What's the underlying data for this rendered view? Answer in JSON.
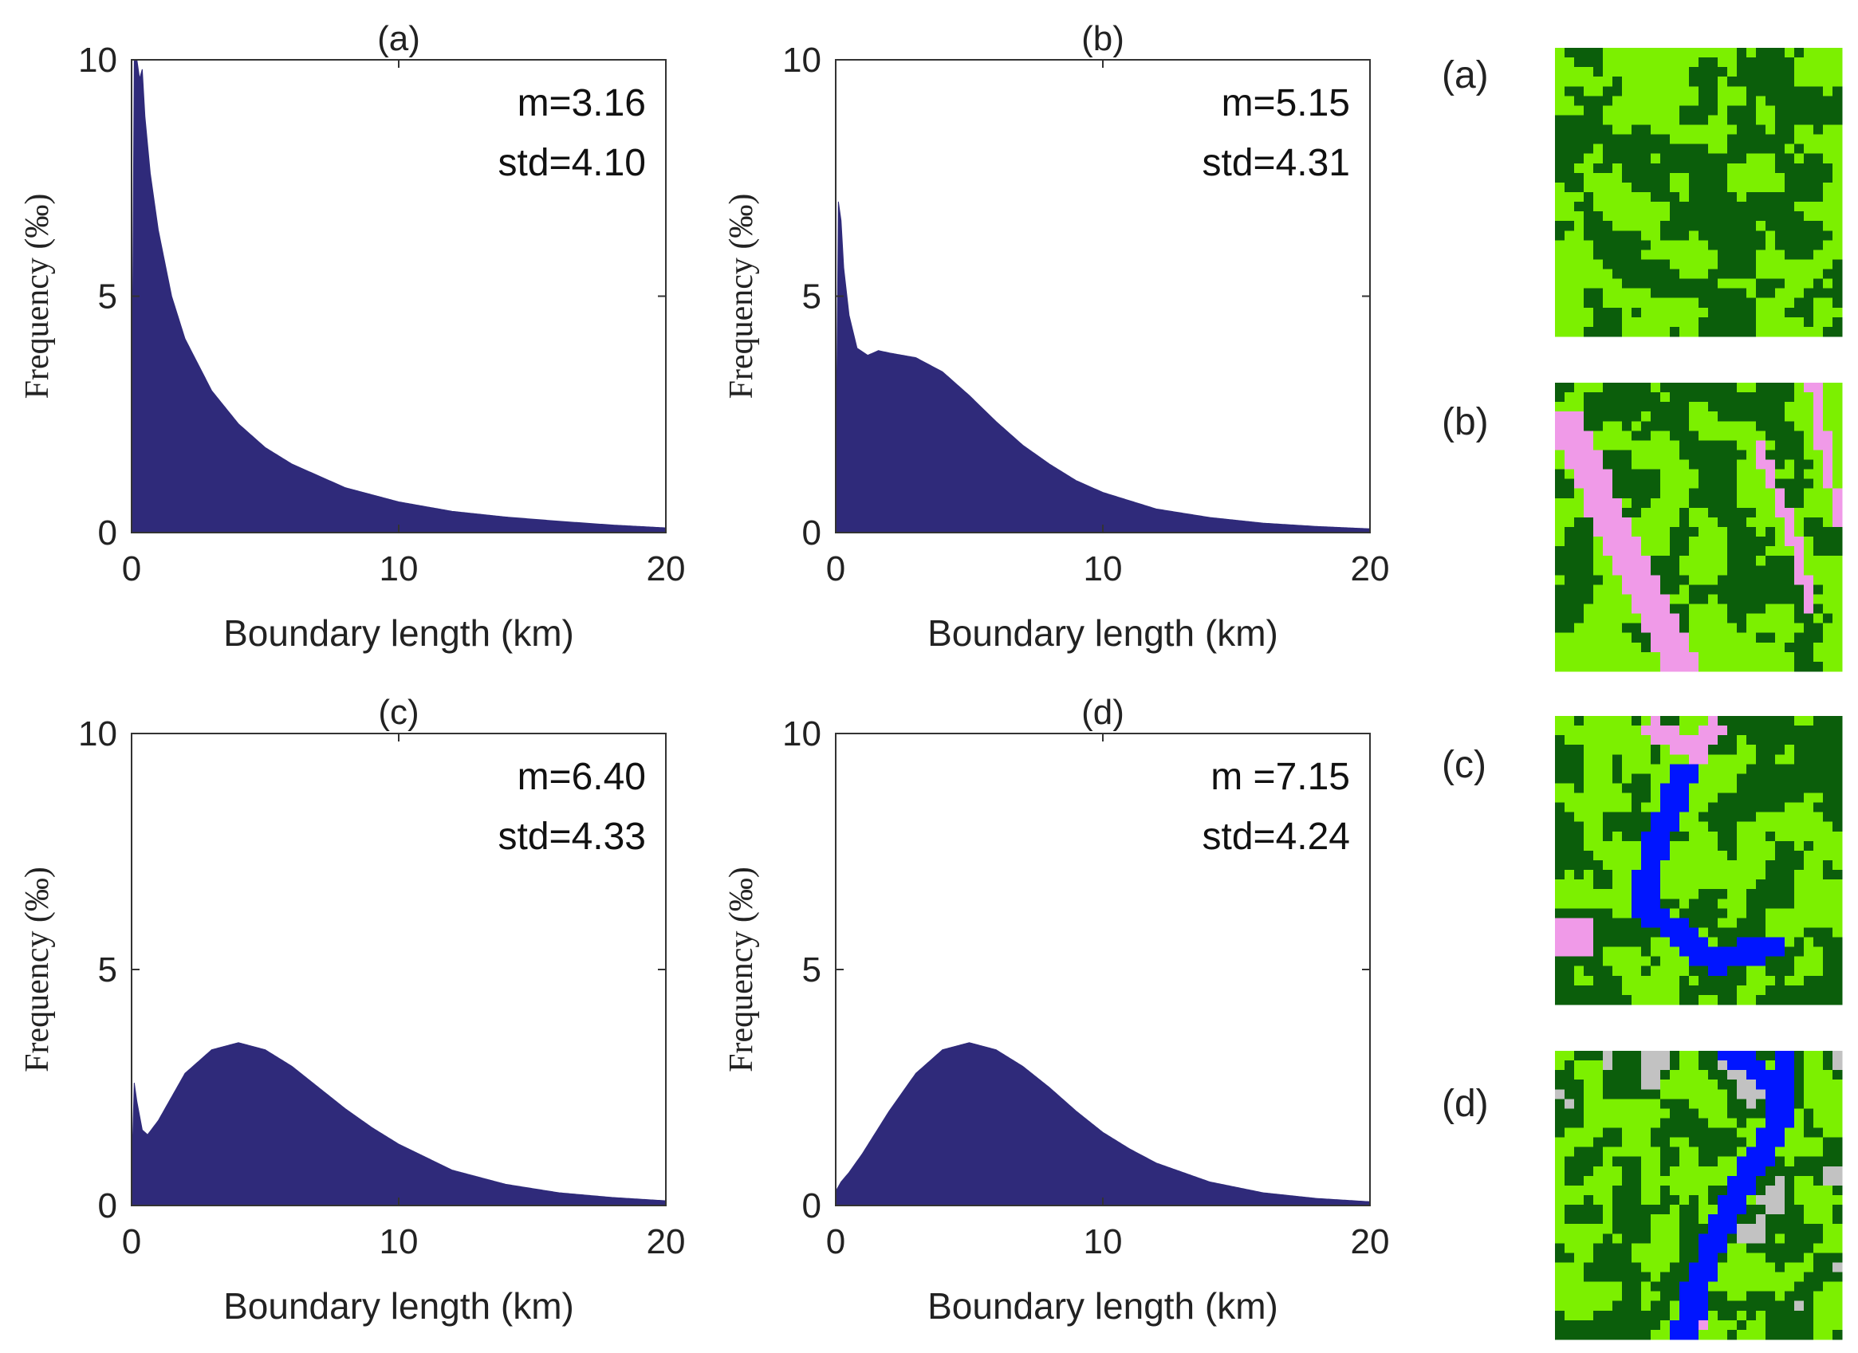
{
  "figure": {
    "colors": {
      "histogram": "#2f2a7a",
      "axes": "#333333",
      "map_dark_green": "#0b5e0b",
      "map_light_green": "#7cf000",
      "map_pink": "#f09ae8",
      "map_blue": "#0015ff",
      "map_gray": "#c2c2c2"
    }
  },
  "chart_data": [
    {
      "type": "area",
      "panel": "(a)",
      "title": "(a)",
      "xlabel": "Boundary length (km)",
      "ylabel": "Frequency (‰)",
      "xlim": [
        0,
        20
      ],
      "ylim": [
        0,
        10
      ],
      "xticks": [
        "0",
        "10",
        "20"
      ],
      "yticks": [
        "0",
        "5",
        "10"
      ],
      "stats": {
        "mean": "m=3.16",
        "std": "std=4.10"
      },
      "series": [
        {
          "name": "frequency",
          "x": [
            0,
            0.1,
            0.2,
            0.3,
            0.4,
            0.5,
            0.7,
            1.0,
            1.5,
            2,
            3,
            4,
            5,
            6,
            8,
            10,
            12,
            14,
            16,
            18,
            20
          ],
          "y": [
            1.2,
            10,
            10,
            9.6,
            9.8,
            8.8,
            7.6,
            6.4,
            5.0,
            4.1,
            3.0,
            2.3,
            1.8,
            1.45,
            0.95,
            0.65,
            0.45,
            0.33,
            0.24,
            0.16,
            0.1
          ]
        }
      ]
    },
    {
      "type": "area",
      "panel": "(b)",
      "title": "(b)",
      "xlabel": "Boundary length (km)",
      "ylabel": "Frequency (‰)",
      "xlim": [
        0,
        20
      ],
      "ylim": [
        0,
        10
      ],
      "xticks": [
        "0",
        "10",
        "20"
      ],
      "yticks": [
        "0",
        "5",
        "10"
      ],
      "stats": {
        "mean": "m=5.15",
        "std": "std=4.31"
      },
      "series": [
        {
          "name": "frequency",
          "x": [
            0,
            0.1,
            0.2,
            0.3,
            0.5,
            0.8,
            1.2,
            1.6,
            2,
            3,
            4,
            5,
            6,
            7,
            8,
            9,
            10,
            12,
            14,
            16,
            18,
            20
          ],
          "y": [
            0.5,
            7.0,
            6.6,
            5.6,
            4.6,
            3.9,
            3.75,
            3.85,
            3.8,
            3.7,
            3.4,
            2.9,
            2.35,
            1.85,
            1.45,
            1.1,
            0.85,
            0.5,
            0.32,
            0.2,
            0.13,
            0.08
          ]
        }
      ]
    },
    {
      "type": "area",
      "panel": "(c)",
      "title": "(c)",
      "xlabel": "Boundary length (km)",
      "ylabel": "Frequency (‰)",
      "xlim": [
        0,
        20
      ],
      "ylim": [
        0,
        10
      ],
      "xticks": [
        "0",
        "10",
        "20"
      ],
      "yticks": [
        "0",
        "5",
        "10"
      ],
      "stats": {
        "mean": "m=6.40",
        "std": "std=4.33"
      },
      "series": [
        {
          "name": "frequency",
          "x": [
            0,
            0.1,
            0.2,
            0.4,
            0.6,
            1,
            1.5,
            2,
            3,
            4,
            5,
            6,
            7,
            8,
            9,
            10,
            12,
            14,
            16,
            18,
            20
          ],
          "y": [
            0.6,
            2.6,
            2.2,
            1.6,
            1.5,
            1.8,
            2.3,
            2.8,
            3.3,
            3.45,
            3.3,
            2.95,
            2.5,
            2.05,
            1.65,
            1.3,
            0.75,
            0.45,
            0.27,
            0.17,
            0.1
          ]
        }
      ]
    },
    {
      "type": "area",
      "panel": "(d)",
      "title": "(d)",
      "xlabel": "Boundary length (km)",
      "ylabel": "Frequency (‰)",
      "xlim": [
        0,
        20
      ],
      "ylim": [
        0,
        10
      ],
      "xticks": [
        "0",
        "10",
        "20"
      ],
      "yticks": [
        "0",
        "5",
        "10"
      ],
      "stats": {
        "mean": "m =7.15",
        "std": "std=4.24"
      },
      "series": [
        {
          "name": "frequency",
          "x": [
            0,
            0.2,
            0.5,
            1,
            2,
            3,
            4,
            5,
            6,
            7,
            8,
            9,
            10,
            11,
            12,
            14,
            16,
            18,
            20
          ],
          "y": [
            0.3,
            0.5,
            0.7,
            1.1,
            2.0,
            2.8,
            3.3,
            3.45,
            3.3,
            2.95,
            2.5,
            2.0,
            1.55,
            1.2,
            0.9,
            0.5,
            0.27,
            0.15,
            0.08
          ]
        }
      ]
    }
  ],
  "maps": [
    {
      "label": "(a)",
      "classes": [
        "dark-green",
        "light-green"
      ]
    },
    {
      "label": "(b)",
      "classes": [
        "dark-green",
        "light-green",
        "pink"
      ]
    },
    {
      "label": "(c)",
      "classes": [
        "dark-green",
        "light-green",
        "pink",
        "blue"
      ]
    },
    {
      "label": "(d)",
      "classes": [
        "dark-green",
        "light-green",
        "pink",
        "blue",
        "gray"
      ]
    }
  ]
}
